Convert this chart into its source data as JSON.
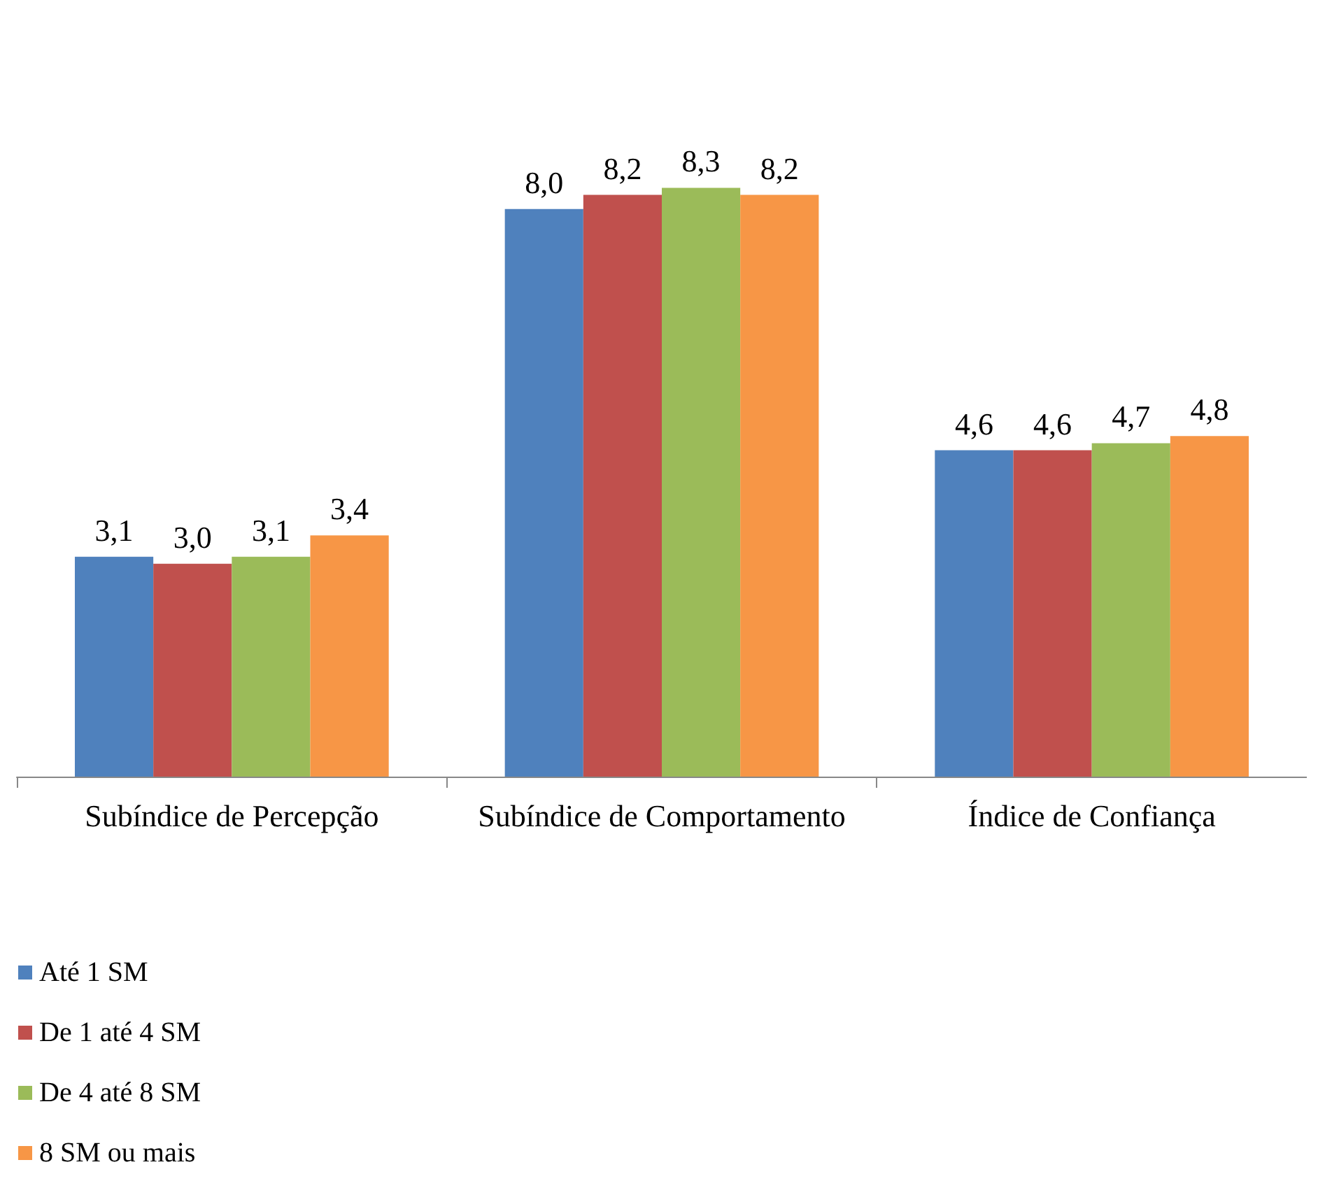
{
  "chart_data": {
    "type": "bar",
    "categories": [
      "Subíndice de Percepção",
      "Subíndice de Comportamento",
      "Índice de Confiança"
    ],
    "series": [
      {
        "name": "Até 1 SM",
        "color": "#4f81bd",
        "values": [
          3.1,
          8.0,
          4.6
        ],
        "value_labels": [
          "3,1",
          "8,0",
          "4,6"
        ]
      },
      {
        "name": "De 1 até 4 SM",
        "color": "#c0504d",
        "values": [
          3.0,
          8.2,
          4.6
        ],
        "value_labels": [
          "3,0",
          "8,2",
          "4,6"
        ]
      },
      {
        "name": "De 4 até 8 SM",
        "color": "#9bbb59",
        "values": [
          3.1,
          8.3,
          4.7
        ],
        "value_labels": [
          "3,1",
          "8,3",
          "4,7"
        ]
      },
      {
        "name": "8 SM ou mais",
        "color": "#f79646",
        "values": [
          3.4,
          8.2,
          4.8
        ],
        "value_labels": [
          "3,4",
          "8,2",
          "4,8"
        ]
      }
    ],
    "legend": "bottom left",
    "grid": false
  }
}
